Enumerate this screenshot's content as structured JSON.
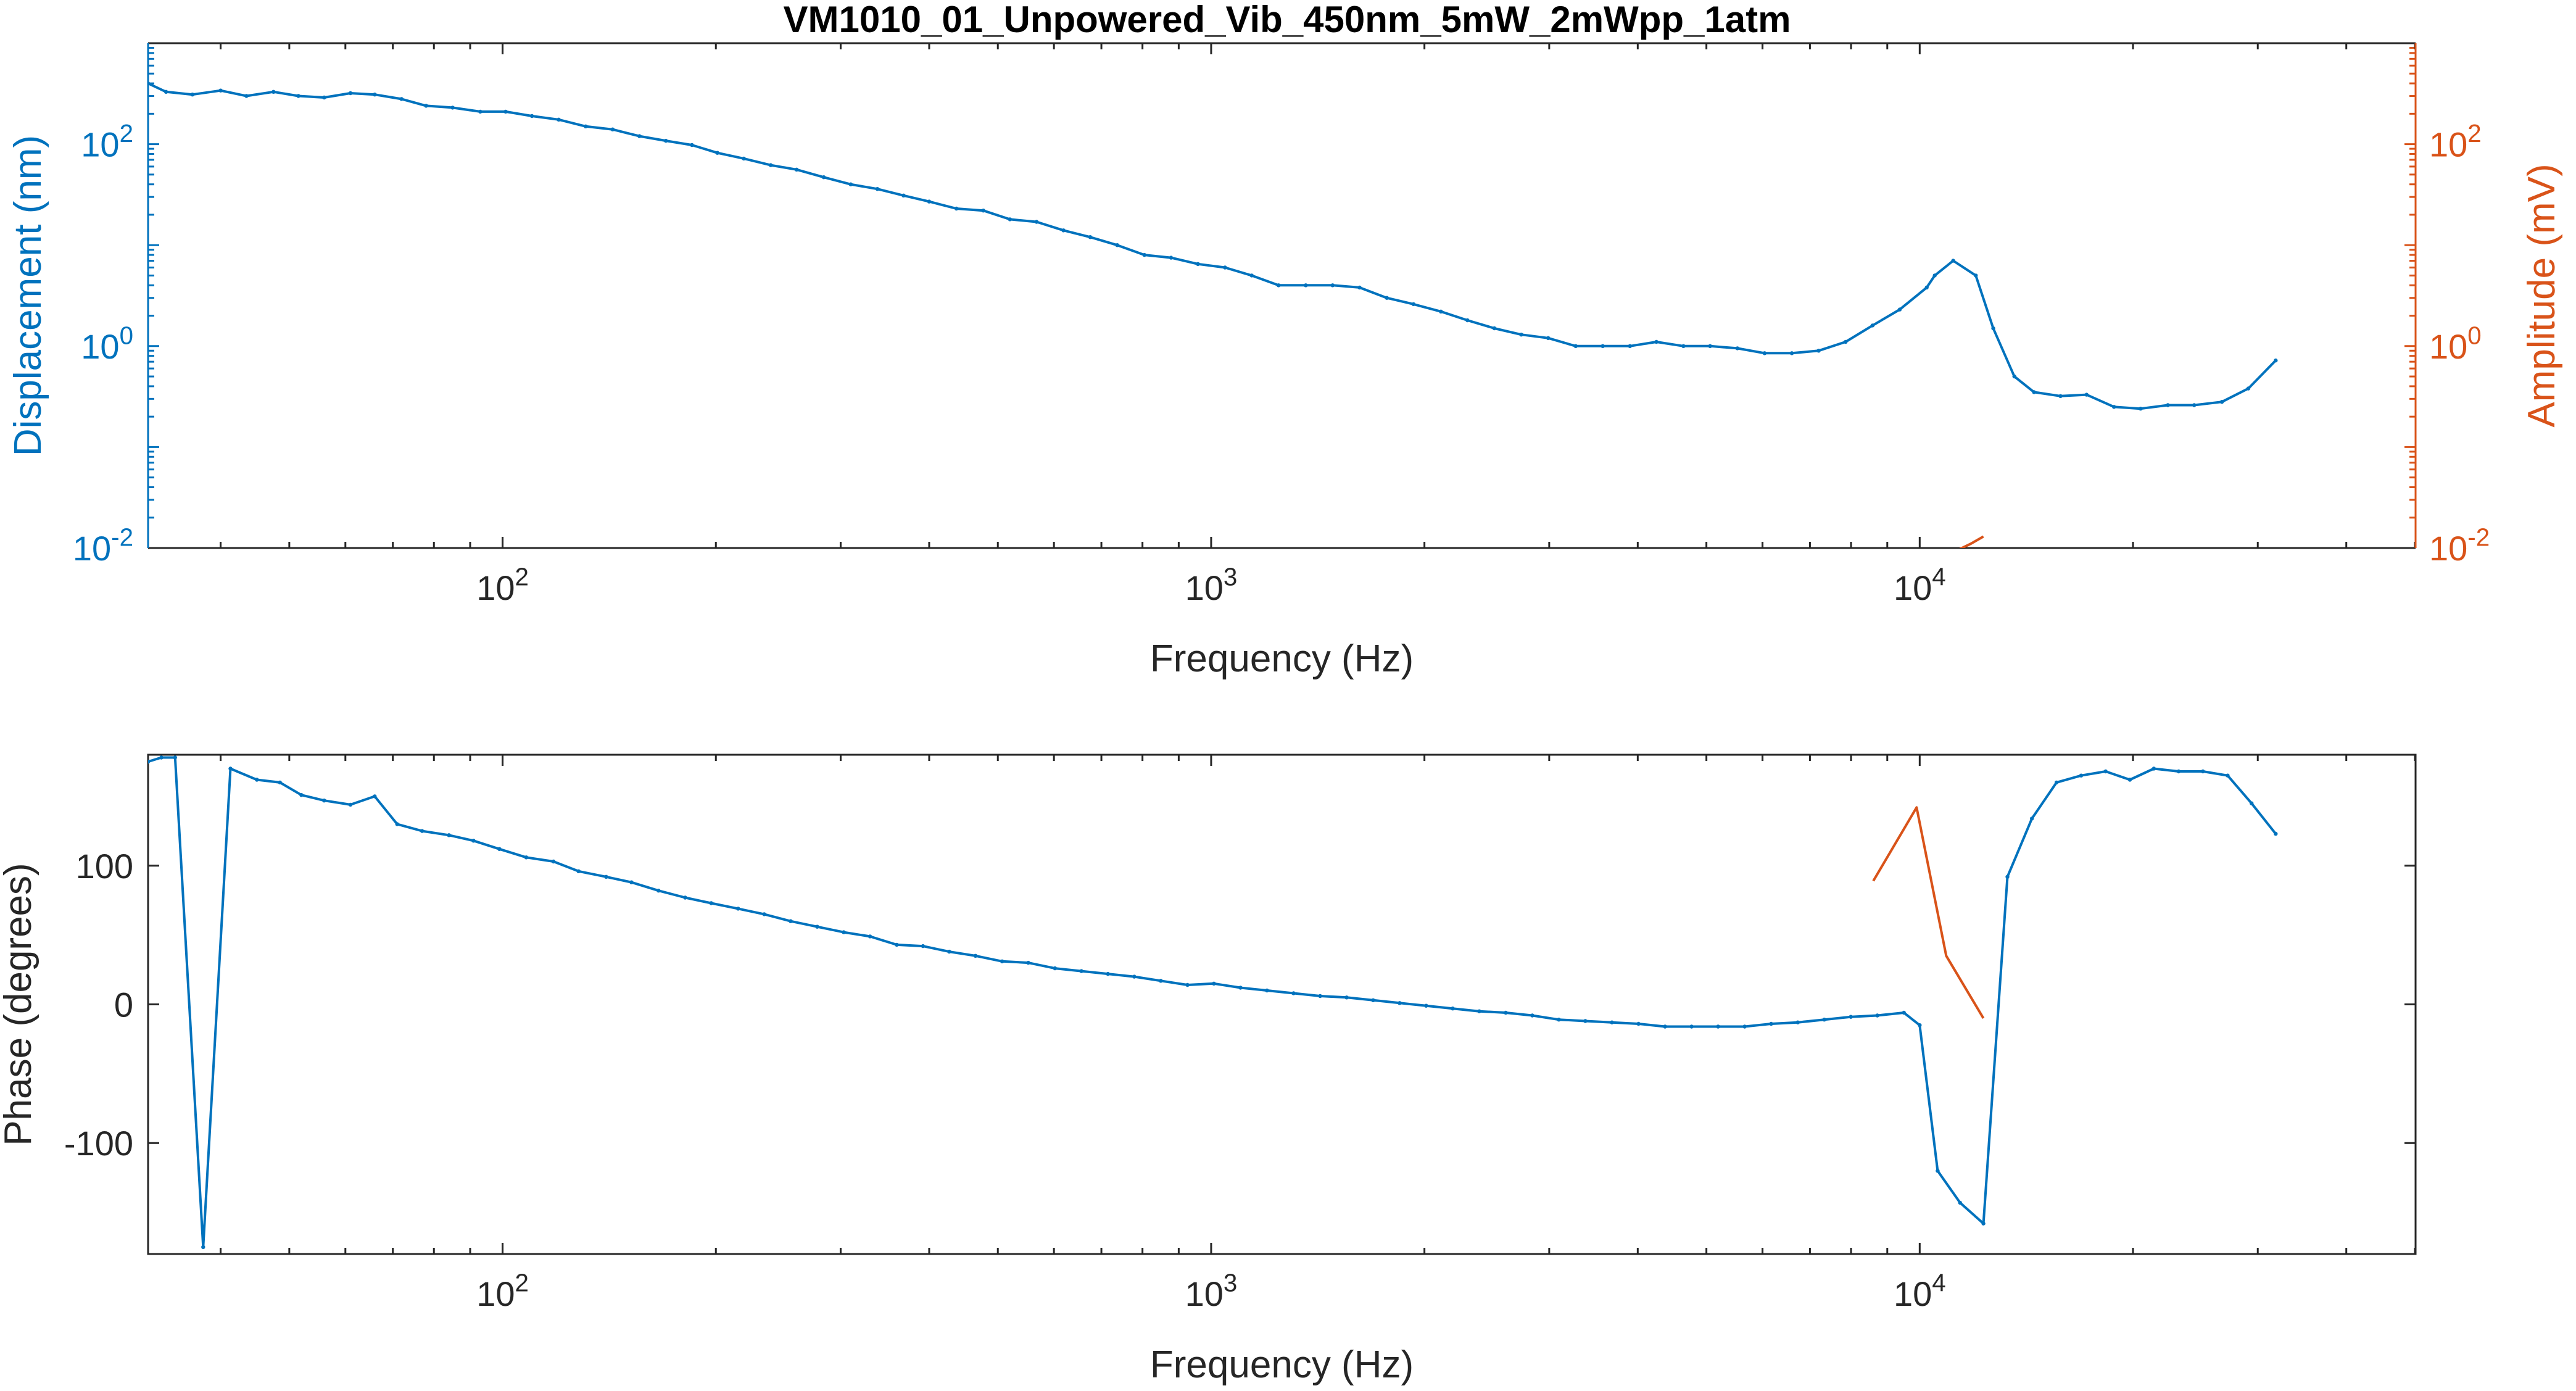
{
  "title": "VM1010_01_Unpowered_Vib_450nm_5mW_2mWpp_1atm",
  "colors": {
    "series1": "#0072BD",
    "series2": "#D95319",
    "axis": "#262626",
    "grid_tick": "#262626",
    "background": "#ffffff"
  },
  "chart_data": [
    {
      "type": "line",
      "title": "VM1010_01_Unpowered_Vib_450nm_5mW_2mWpp_1atm",
      "xlabel": "Frequency (Hz)",
      "ylabel_left": "Displacement (nm)",
      "ylabel_right": "Amplitude (mV)",
      "xscale": "log",
      "yscale": "log",
      "xlim": [
        31.6,
        50100
      ],
      "ylim_left": [
        0.01,
        1000
      ],
      "ylim_right": [
        0.01,
        1000
      ],
      "x_ticks": [
        "10^2",
        "10^3",
        "10^4"
      ],
      "y_ticks_left": [
        "10^-2",
        "10^0",
        "10^2"
      ],
      "y_ticks_right": [
        "10^-2",
        "10^0",
        "10^2"
      ],
      "grid": false,
      "series": [
        {
          "axis": "left",
          "x": [
            31.6,
            33.5,
            36.5,
            40,
            43.5,
            47.5,
            51.5,
            56,
            61,
            66,
            72,
            78,
            85,
            93,
            101,
            110,
            120,
            131,
            143,
            156,
            170,
            185,
            201,
            219,
            239,
            260,
            284,
            310,
            338,
            368,
            400,
            437,
            477,
            520,
            567,
            619,
            675,
            737,
            805,
            878,
            958,
            1046,
            1141,
            1245,
            1360,
            1484,
            1620,
            1770,
            1930,
            2110,
            2300,
            2510,
            2740,
            2990,
            3270,
            3570,
            3900,
            4250,
            4640,
            5060,
            5530,
            6040,
            6600,
            7200,
            7860,
            8580,
            9370,
            10230,
            10500,
            11150,
            12000,
            12700,
            13600,
            14500,
            15800,
            17200,
            18800,
            20500,
            22400,
            24400,
            26700,
            29100,
            31800
          ],
          "y": [
            400,
            330,
            310,
            340,
            300,
            330,
            300,
            290,
            320,
            310,
            280,
            240,
            230,
            210,
            210,
            190,
            175,
            150,
            140,
            120,
            108,
            98,
            82,
            72,
            62,
            56,
            47,
            40,
            36,
            31,
            27,
            23,
            22,
            18,
            17,
            14,
            12,
            10,
            8,
            7.5,
            6.5,
            6.0,
            5.0,
            4.0,
            4.0,
            4.0,
            3.8,
            3.0,
            2.6,
            2.2,
            1.8,
            1.5,
            1.3,
            1.2,
            1.0,
            1.0,
            1.0,
            1.1,
            1.0,
            1.0,
            0.95,
            0.85,
            0.85,
            0.9,
            1.1,
            1.6,
            2.3,
            3.8,
            5.0,
            7.0,
            5.0,
            1.5,
            0.5,
            0.35,
            0.32,
            0.33,
            0.25,
            0.24,
            0.26,
            0.26,
            0.28,
            0.38,
            0.72
          ]
        },
        {
          "axis": "right",
          "x": [
            10500,
            10900,
            11300,
            11800,
            12300
          ],
          "y": [
            0.0085,
            0.0075,
            0.0095,
            0.011,
            0.013
          ]
        }
      ]
    },
    {
      "type": "line",
      "xlabel": "Frequency (Hz)",
      "ylabel": "Phase (degrees)",
      "xscale": "log",
      "xlim": [
        31.6,
        50100
      ],
      "ylim": [
        -180,
        180
      ],
      "x_ticks": [
        "10^2",
        "10^3",
        "10^4"
      ],
      "y_ticks": [
        "-100",
        "0",
        "100"
      ],
      "grid": false,
      "series": [
        {
          "x": [
            31.6,
            33,
            34.5,
            37.8,
            41.3,
            45,
            48.5,
            52,
            56,
            61,
            66,
            71,
            77,
            84,
            91,
            99,
            108,
            118,
            128,
            140,
            152,
            166,
            181,
            197,
            215,
            234,
            255,
            278,
            303,
            330,
            360,
            392,
            427,
            465,
            507,
            552,
            602,
            656,
            715,
            779,
            849,
            926,
            1009,
            1100,
            1199,
            1307,
            1425,
            1553,
            1693,
            1845,
            2011,
            2192,
            2390,
            2605,
            2840,
            3095,
            3374,
            3678,
            4010,
            4371,
            4765,
            5194,
            5662,
            6172,
            6728,
            7334,
            7994,
            8714,
            9499,
            10000,
            10600,
            11400,
            12300,
            13300,
            14400,
            15600,
            16900,
            18300,
            19800,
            21400,
            23200,
            25100,
            27200,
            29400,
            31800
          ],
          "y": [
            175,
            178,
            178,
            -175,
            170,
            162,
            160,
            151,
            147,
            144,
            150,
            130,
            125,
            122,
            118,
            112,
            106,
            103,
            96,
            92,
            88,
            82,
            77,
            73,
            69,
            65,
            60,
            56,
            52,
            49,
            43,
            42,
            38,
            35,
            31,
            30,
            26,
            24,
            22,
            20,
            17,
            14,
            15,
            12,
            10,
            8,
            6,
            5,
            3,
            1,
            -1,
            -3,
            -5,
            -6,
            -8,
            -11,
            -12,
            -13,
            -14,
            -16,
            -16,
            -16,
            -16,
            -14,
            -13,
            -11,
            -9,
            -8,
            -6,
            -15,
            -120,
            -143,
            -158,
            92,
            134,
            160,
            165,
            168,
            162,
            170,
            168,
            168,
            165,
            145,
            123
          ]
        },
        {
          "x": [
            8600,
            9900,
            10900,
            12300
          ],
          "y": [
            89,
            142,
            35,
            -10
          ]
        }
      ]
    }
  ]
}
